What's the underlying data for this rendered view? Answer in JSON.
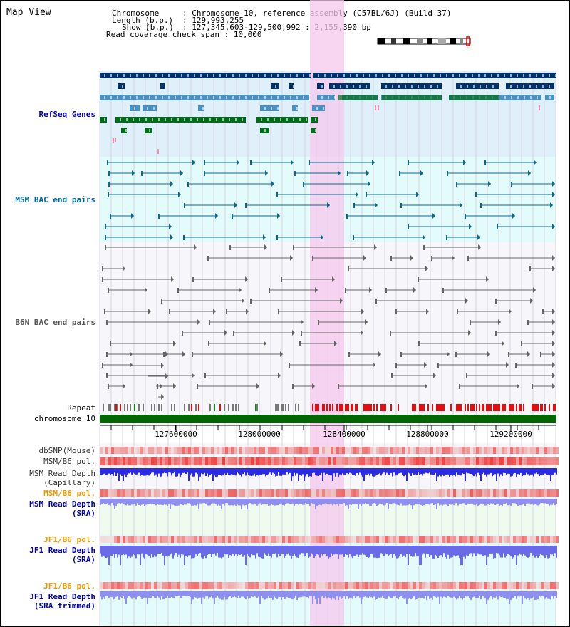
{
  "title": "Map View",
  "info": {
    "chromosome_key": "Chromosome",
    "chromosome_val": ": Chromosome 10, reference assembly (C57BL/6J) (Build 37)",
    "length_key": "Length (b.p.)",
    "length_val": ": 129,993,255",
    "show_key": "Show (b.p.)",
    "show_val": ": 127,345,603-129,500,992 : 2,155,390 bp",
    "coverage_line": "Read coverage check span : 10,000"
  },
  "tracks": {
    "refseq": "RefSeq Genes",
    "msm_bac": "MSM BAC end pairs",
    "b6n_bac": "B6N BAC end pairs",
    "repeat": "Repeat",
    "chromosome": "chromosome 10",
    "dbsnp": "dbSNP(Mouse)",
    "msm_pol1": "MSM/B6 pol.",
    "msm_depth_cap_1": "MSM Read Depth",
    "msm_depth_cap_2": "(Capillary)",
    "msm_pol2": "MSM/B6 pol.",
    "msm_depth_sra_1": "MSM Read Depth",
    "msm_depth_sra_2": "(SRA)",
    "jf1_pol1": "JF1/B6 pol.",
    "jf1_depth_sra_1": "JF1 Read Depth",
    "jf1_depth_sra_2": "(SRA)",
    "jf1_pol2": "JF1/B6 pol.",
    "jf1_depth_trim_1": "JF1 Read Depth",
    "jf1_depth_trim_2": "(SRA trimmed)"
  },
  "axis_ticks": [
    "127600000",
    "128000000",
    "128400000",
    "128800000",
    "129200000"
  ],
  "colors": {
    "refseq_label": "#0000aa",
    "msm_bac_label": "#006699",
    "b6n_label": "#555555",
    "sra_label": "#0000aa",
    "jf1_pol_label": "#ee9900",
    "highlight": "#f5c8ee",
    "chromosome_bar": "#006600"
  }
}
